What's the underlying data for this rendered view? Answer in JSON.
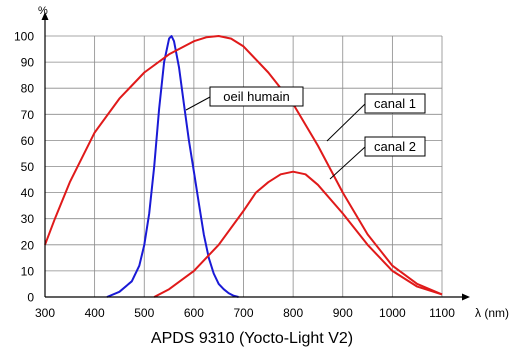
{
  "chart_data": {
    "type": "line",
    "title": "APDS 9310 (Yocto-Light V2)",
    "xlabel": "λ (nm)",
    "ylabel": "%",
    "xlim": [
      300,
      1100
    ],
    "ylim": [
      0,
      100
    ],
    "x_ticks": [
      300,
      400,
      500,
      600,
      700,
      800,
      900,
      1000,
      1100
    ],
    "y_ticks": [
      0,
      10,
      20,
      30,
      40,
      50,
      60,
      70,
      80,
      90,
      100
    ],
    "grid": true,
    "series": [
      {
        "name": "oeil humain",
        "color": "#1a1ad6",
        "x": [
          425,
          450,
          475,
          490,
          500,
          510,
          520,
          530,
          540,
          550,
          555,
          560,
          570,
          580,
          590,
          600,
          610,
          620,
          630,
          640,
          650,
          660,
          670,
          680,
          690
        ],
        "y": [
          0,
          2,
          6,
          12,
          20,
          32,
          50,
          72,
          90,
          99,
          100,
          98,
          88,
          74,
          60,
          48,
          36,
          24,
          15,
          9,
          5,
          3,
          1.5,
          0.5,
          0
        ]
      },
      {
        "name": "canal 1",
        "color": "#e01a1a",
        "x": [
          300,
          320,
          350,
          400,
          450,
          500,
          550,
          600,
          625,
          650,
          675,
          700,
          750,
          800,
          850,
          900,
          950,
          1000,
          1050,
          1100
        ],
        "y": [
          20,
          30,
          44,
          63,
          76,
          86,
          93,
          98,
          99.5,
          100,
          99,
          96,
          86,
          74,
          58,
          40,
          24,
          12,
          5,
          1
        ]
      },
      {
        "name": "canal 2",
        "color": "#e01a1a",
        "x": [
          520,
          550,
          600,
          650,
          700,
          725,
          750,
          775,
          800,
          825,
          850,
          900,
          950,
          1000,
          1050,
          1100
        ],
        "y": [
          0,
          3,
          10,
          20,
          33,
          40,
          44,
          47,
          48,
          47,
          43,
          32,
          20,
          10,
          4,
          1
        ]
      }
    ]
  }
}
